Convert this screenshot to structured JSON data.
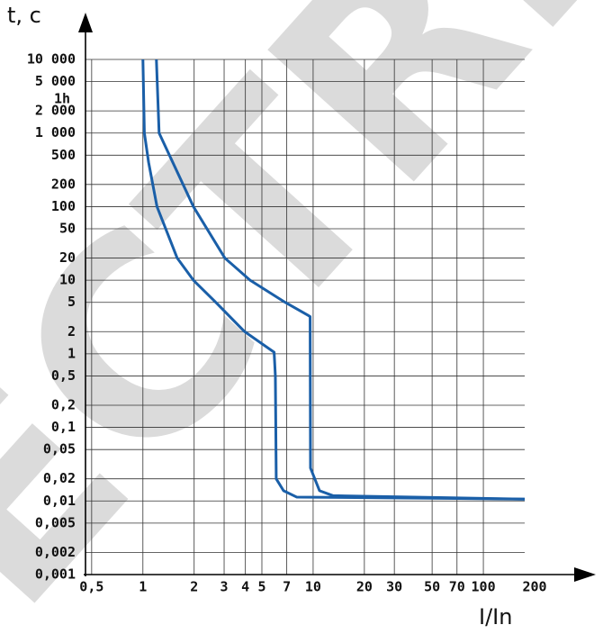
{
  "chart_data": {
    "type": "line",
    "y_label": "t, c",
    "x_label": "I/In",
    "annotation": "1h",
    "watermark": "ECTRIC",
    "xscale": "log",
    "yscale": "log",
    "grid": true,
    "xlim": [
      0.46,
      200
    ],
    "ylim": [
      0.001,
      10000
    ],
    "xticks": [
      {
        "value": 0.5,
        "label": "0,5"
      },
      1,
      2,
      3,
      4,
      5,
      7,
      10,
      20,
      30,
      50,
      70,
      100,
      200
    ],
    "yticks": [
      {
        "value": 10000,
        "label": "10 000"
      },
      {
        "value": 5000,
        "label": "5 000"
      },
      {
        "value": 2000,
        "label": "2 000"
      },
      {
        "value": 1000,
        "label": "1 000"
      },
      500,
      200,
      100,
      50,
      20,
      10,
      5,
      2,
      1,
      {
        "value": 0.5,
        "label": "0,5"
      },
      {
        "value": 0.2,
        "label": "0,2"
      },
      {
        "value": 0.1,
        "label": "0,1"
      },
      {
        "value": 0.05,
        "label": "0,05"
      },
      {
        "value": 0.02,
        "label": "0,02"
      },
      {
        "value": 0.01,
        "label": "0,01"
      },
      {
        "value": 0.005,
        "label": "0,005"
      },
      {
        "value": 0.002,
        "label": "0,002"
      },
      {
        "value": 0.001,
        "label": "0,001"
      }
    ],
    "series": [
      {
        "color": "#1a5fa8",
        "x": [
          1.0,
          1.02,
          1.08,
          1.21,
          1.59,
          1.98,
          2.68,
          3.96,
          5.9,
          6.0,
          6.07,
          6.7,
          8.0,
          175
        ],
        "values": [
          10000,
          1000,
          400,
          100,
          20,
          10,
          5,
          2,
          1.05,
          0.5,
          0.02,
          0.0138,
          0.0113,
          0.0106
        ]
      },
      {
        "color": "#1a5fa8",
        "x": [
          1.2,
          1.245,
          1.98,
          3.03,
          4.26,
          6.85,
          9.4,
          9.6,
          9.65,
          10.9,
          13.1,
          175
        ],
        "values": [
          10000,
          1000,
          100,
          20,
          10,
          5,
          3.3,
          3.2,
          0.028,
          0.0138,
          0.0118,
          0.0106
        ]
      }
    ]
  }
}
